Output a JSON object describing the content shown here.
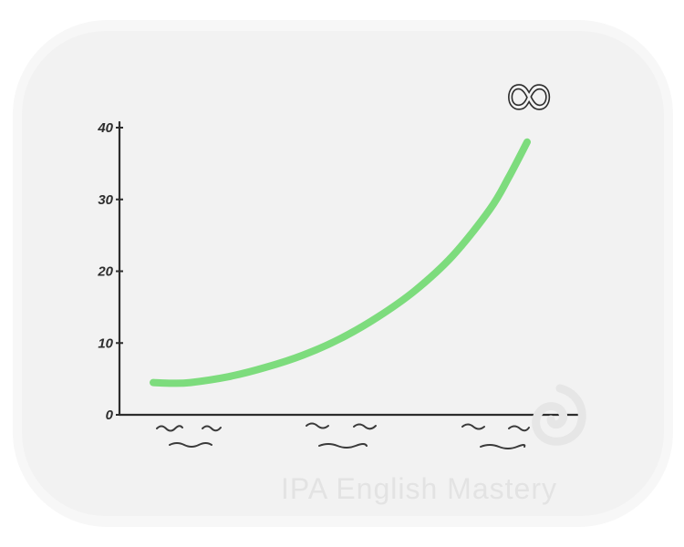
{
  "watermark": {
    "text": "IPA English Mastery"
  },
  "chart_data": {
    "type": "line",
    "title": "",
    "xlabel": "",
    "ylabel": "",
    "ylim": [
      0,
      40
    ],
    "yticks": [
      0,
      10,
      20,
      30,
      40
    ],
    "ytick_labels": [
      "0",
      "10",
      "20",
      "30",
      "40"
    ],
    "annotation": "∞",
    "grid": false,
    "x_tick_labels_illegible": true,
    "colors": {
      "line": "#7ddc7d",
      "axis": "#2d2d2d",
      "scribble": "#3a3a3a"
    },
    "series": [
      {
        "x": [
          0,
          0.05,
          0.1,
          0.2,
          0.3,
          0.4,
          0.5,
          0.6,
          0.7,
          0.8,
          0.9,
          0.95,
          1.0
        ],
        "values": [
          4.5,
          4.4,
          4.5,
          5.3,
          6.6,
          8.3,
          10.6,
          13.6,
          17.3,
          22.1,
          28.6,
          33.0,
          38.0
        ]
      }
    ]
  }
}
